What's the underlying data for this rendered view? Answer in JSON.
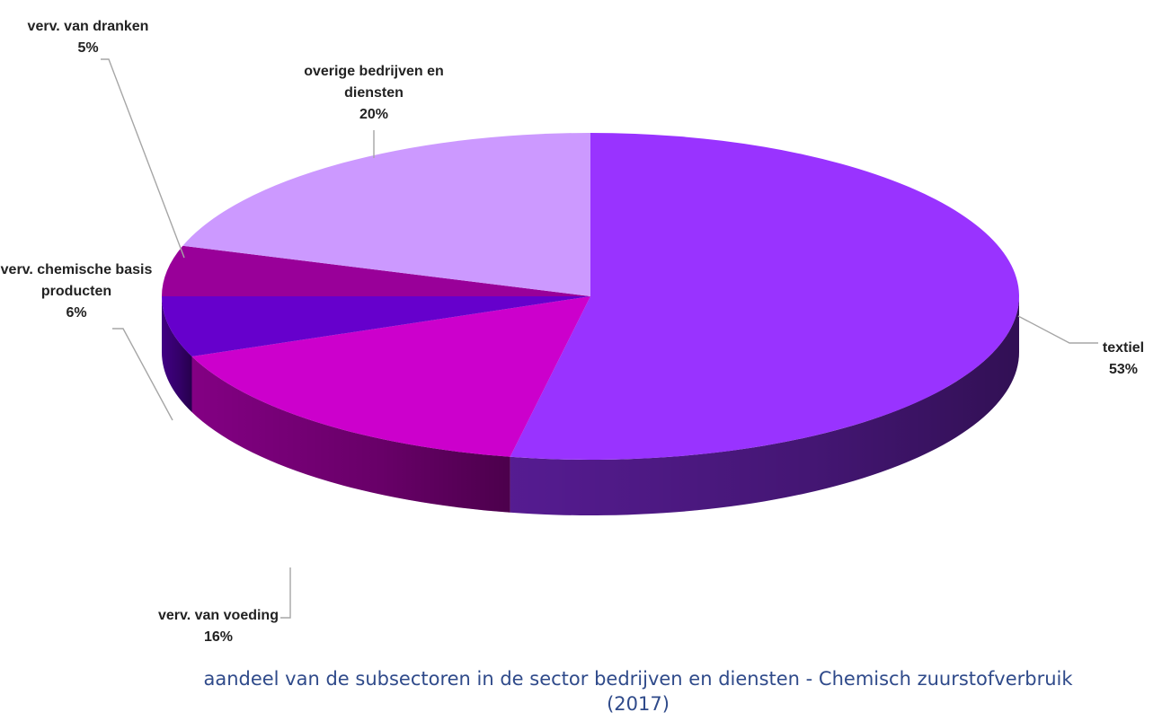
{
  "chart_data": {
    "type": "pie",
    "categories": [
      "textiel",
      "verv. van voeding",
      "verv. chemische basis producten",
      "verv. van dranken",
      "overige bedrijven en diensten"
    ],
    "values": [
      53,
      16,
      6,
      5,
      20
    ],
    "labels": [
      {
        "lines": [
          "textiel",
          "53%"
        ]
      },
      {
        "lines": [
          "verv. van voeding",
          "16%"
        ]
      },
      {
        "lines": [
          "verv. chemische basis",
          "producten",
          "6%"
        ]
      },
      {
        "lines": [
          "verv. van dranken",
          "5%"
        ]
      },
      {
        "lines": [
          "overige bedrijven en",
          "diensten",
          "20%"
        ]
      }
    ],
    "colors": [
      "#9933ff",
      "#cc00cc",
      "#6600cc",
      "#990099",
      "#cc99ff"
    ],
    "side_colors": [
      "#5a1d99",
      "#8a008a",
      "#44008a",
      "#660066",
      "#8866aa"
    ],
    "title": "",
    "xlabel": "",
    "ylabel": "",
    "legend": "none",
    "style": "3d-pie"
  },
  "caption": {
    "line1": "aandeel van de subsectoren in de sector bedrijven en diensten - Chemisch zuurstofverbruik",
    "line2": "(2017)"
  }
}
